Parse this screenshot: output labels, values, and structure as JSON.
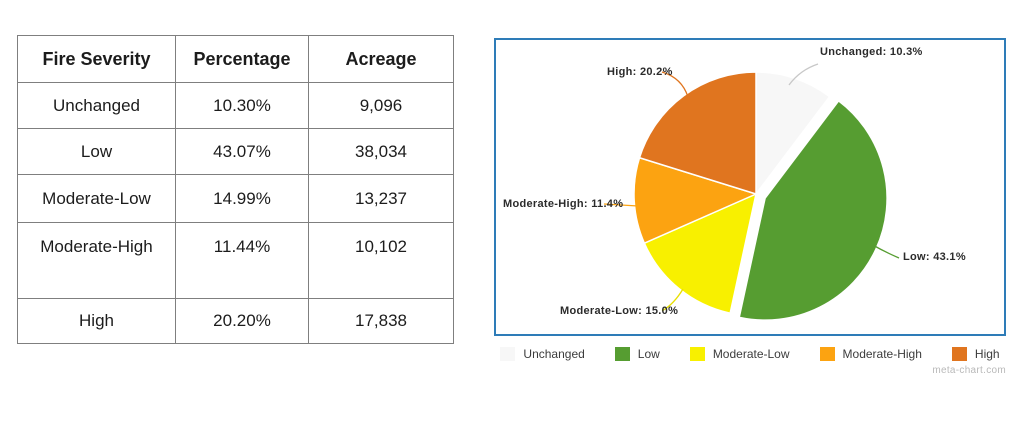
{
  "table": {
    "columns": [
      "Fire Severity",
      "Percentage",
      "Acreage"
    ],
    "rows": [
      [
        "Unchanged",
        "10.30%",
        "9,096"
      ],
      [
        "Low",
        "43.07%",
        "38,034"
      ],
      [
        "Moderate-Low",
        "14.99%",
        "13,237"
      ],
      [
        "Moderate-High",
        "11.44%",
        "10,102"
      ],
      [
        "High",
        "20.20%",
        "17,838"
      ]
    ]
  },
  "chart_data": {
    "type": "pie",
    "categories": [
      "Unchanged",
      "Low",
      "Moderate-Low",
      "Moderate-High",
      "High"
    ],
    "values": [
      10.3,
      43.1,
      15.0,
      11.4,
      20.2
    ],
    "colors": [
      "#f7f7f7",
      "#569d31",
      "#f8f000",
      "#fca311",
      "#e0751f"
    ],
    "leader_colors": [
      "#c8c8c8",
      "#569d31",
      "#e8df00",
      "#fca311",
      "#e0751f"
    ],
    "slice_labels": [
      "Unchanged: 10.3%",
      "Low: 43.1%",
      "Moderate-Low: 15.0%",
      "Moderate-High: 11.4%",
      "High: 20.2%"
    ],
    "legend": [
      "Unchanged",
      "Low",
      "Moderate-Low",
      "Moderate-High",
      "High"
    ],
    "legend_position": "bottom",
    "exploded_slice": "Low",
    "start_angle_deg_from_top": 0,
    "direction": "clockwise",
    "panel_border_color": "#2e7cb8"
  },
  "watermark": "meta-chart.com"
}
